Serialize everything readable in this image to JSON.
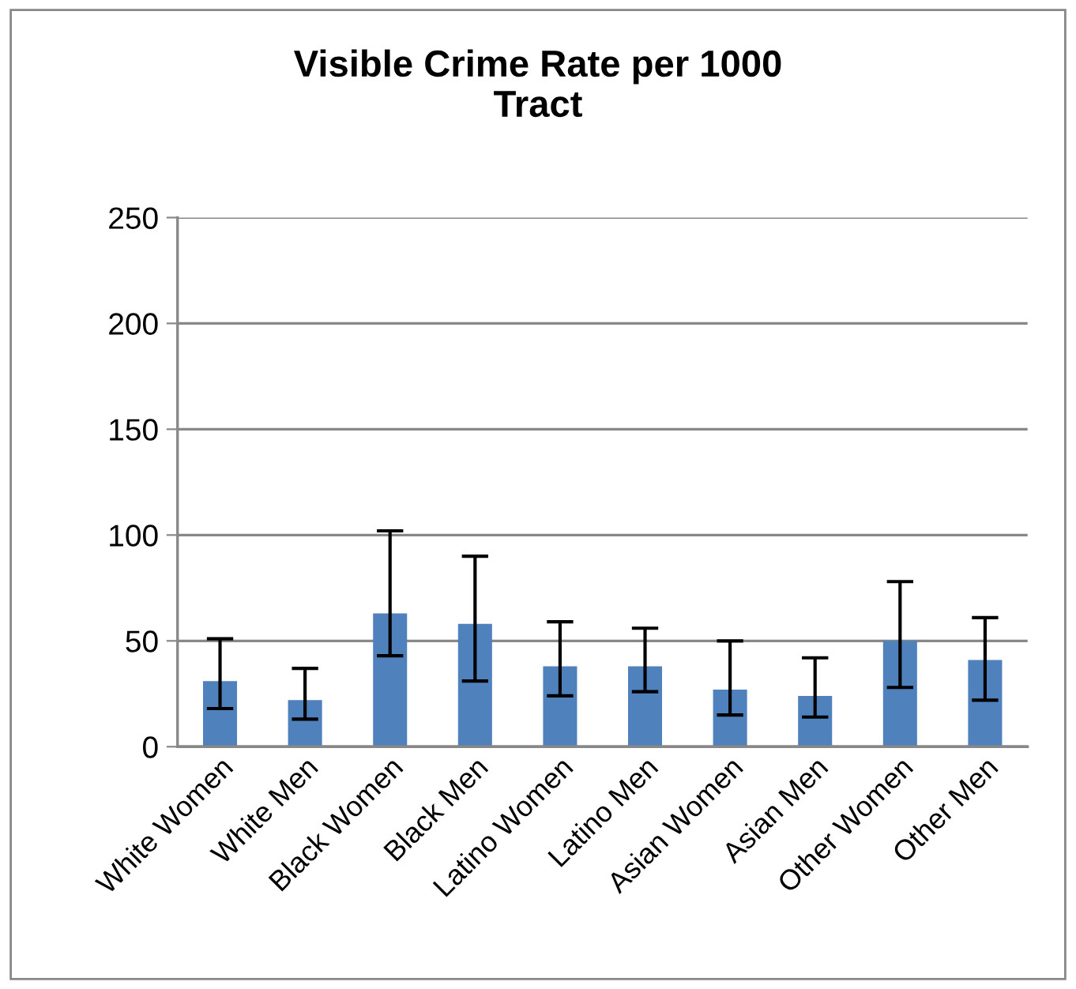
{
  "chart_data": {
    "type": "bar",
    "title": "Visible Crime Rate per 1000\nTract",
    "categories": [
      "White Women",
      "White Men",
      "Black Women",
      "Black Men",
      "Latino Women",
      "Latino Men",
      "Asian Women",
      "Asian Men",
      "Other Women",
      "Other Men"
    ],
    "values": [
      31,
      22,
      63,
      58,
      38,
      38,
      27,
      24,
      50,
      41
    ],
    "errors": [
      [
        18,
        51
      ],
      [
        13,
        37
      ],
      [
        43,
        102
      ],
      [
        31,
        90
      ],
      [
        24,
        59
      ],
      [
        26,
        56
      ],
      [
        15,
        50
      ],
      [
        14,
        42
      ],
      [
        28,
        78
      ],
      [
        22,
        61
      ]
    ],
    "color": "#4f81bd",
    "ylim": [
      0,
      250
    ],
    "yticks": [
      0,
      50,
      100,
      150,
      200,
      250
    ],
    "grid": "y"
  }
}
